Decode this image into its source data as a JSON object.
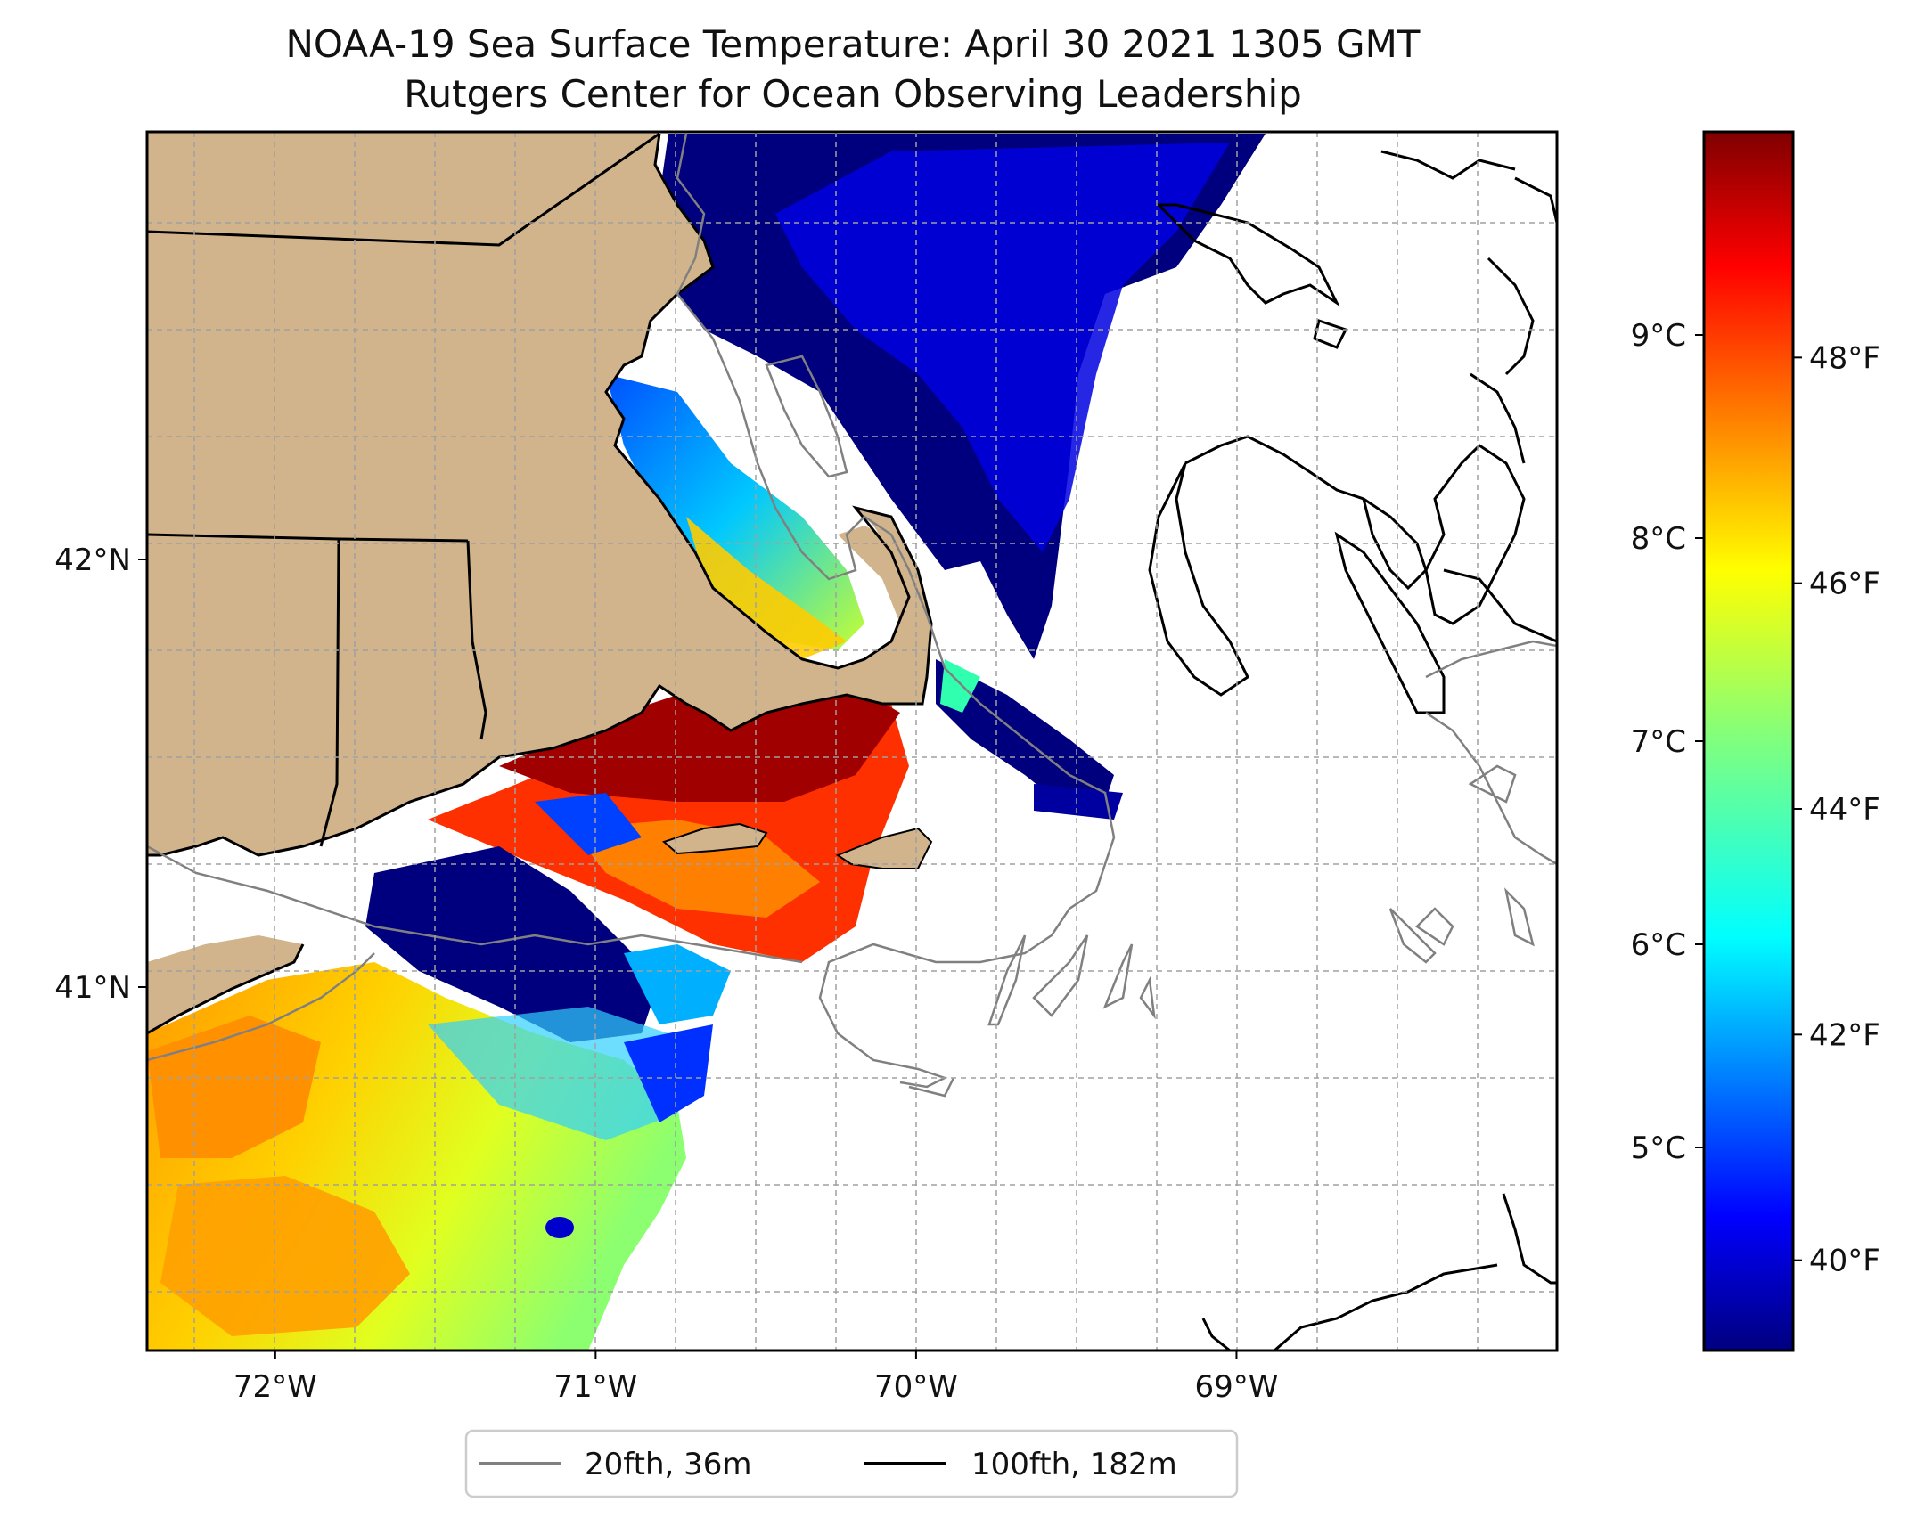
{
  "title": {
    "line1": "NOAA-19 Sea Surface Temperature: April 30 2021 1305 GMT",
    "line2": "Rutgers Center for Ocean Observing Leadership"
  },
  "map": {
    "lon_range": [
      -72.4,
      -68.0
    ],
    "lat_range": [
      40.15,
      43.0
    ],
    "x_ticks": [
      {
        "lon": -72,
        "label": "72°W"
      },
      {
        "lon": -71,
        "label": "71°W"
      },
      {
        "lon": -70,
        "label": "70°W"
      },
      {
        "lon": -69,
        "label": "69°W"
      }
    ],
    "y_ticks": [
      {
        "lat": 42,
        "label": "42°N"
      },
      {
        "lat": 41,
        "label": "41°N"
      }
    ],
    "gridlines": true,
    "land_color": "#d2b48c"
  },
  "colorbar": {
    "colormap": "jet",
    "celsius_ticks": [
      {
        "value": 9,
        "label": "9°C"
      },
      {
        "value": 8,
        "label": "8°C"
      },
      {
        "value": 7,
        "label": "7°C"
      },
      {
        "value": 6,
        "label": "6°C"
      },
      {
        "value": 5,
        "label": "5°C"
      }
    ],
    "fahrenheit_ticks": [
      {
        "value": 48,
        "label": "48°F"
      },
      {
        "value": 46,
        "label": "46°F"
      },
      {
        "value": 44,
        "label": "44°F"
      },
      {
        "value": 42,
        "label": "42°F"
      },
      {
        "value": 40,
        "label": "40°F"
      }
    ],
    "range_f": [
      39.2,
      50.0
    ]
  },
  "legend": {
    "items": [
      {
        "label": "20fth, 36m",
        "color": "#808080"
      },
      {
        "label": "100fth, 182m",
        "color": "#000000"
      }
    ]
  }
}
